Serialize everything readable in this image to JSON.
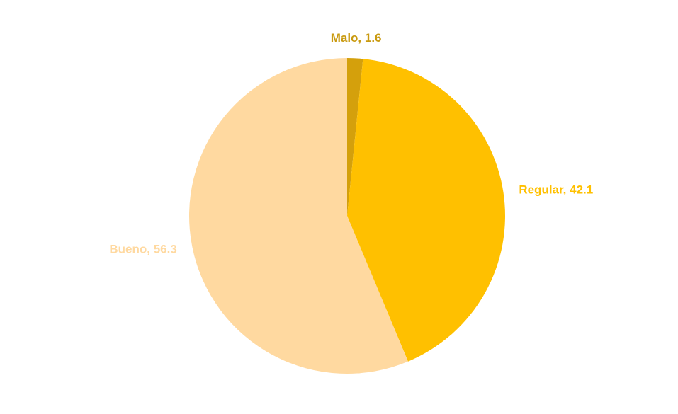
{
  "chart_data": {
    "type": "pie",
    "values": [
      1.6,
      42.1,
      56.3
    ],
    "value_labels": [
      "Malo, 1.6",
      "Regular, 42.1",
      "Bueno, 56.3"
    ],
    "colors": [
      "#d4a00c",
      "#ffc000",
      "#ffd9a0"
    ],
    "label_colors": [
      "#c99a10",
      "#ffc000",
      "#ffd9a0"
    ]
  }
}
